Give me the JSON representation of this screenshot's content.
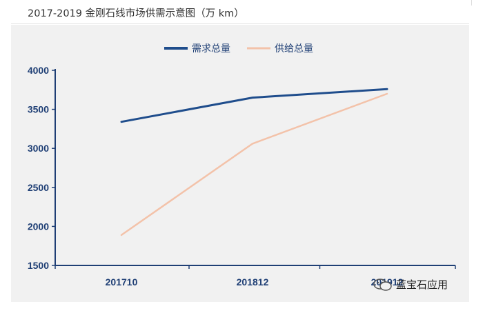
{
  "title": "2017-2019 金刚石线市场供需示意图（万 km）",
  "watermark": {
    "text": "蓝宝石应用",
    "icon": "wechat-icon"
  },
  "colors": {
    "panel": "#f1f1f1",
    "axis": "#1f3f75",
    "tick_text": "#1f3f75",
    "demand": "#1f4d8c",
    "supply": "#f3c2a9"
  },
  "chart_data": {
    "type": "line",
    "categories": [
      "201710",
      "201812",
      "201912"
    ],
    "series": [
      {
        "name": "需求总量",
        "values": [
          3340,
          3650,
          3760
        ]
      },
      {
        "name": "供给总量",
        "values": [
          1890,
          3060,
          3700
        ]
      }
    ],
    "ylim": [
      1500,
      4000
    ],
    "yticks": [
      4000,
      3500,
      3000,
      2500,
      2000,
      1500
    ],
    "grid": false,
    "legend_position": "top-center",
    "xlabel": "",
    "ylabel": ""
  }
}
